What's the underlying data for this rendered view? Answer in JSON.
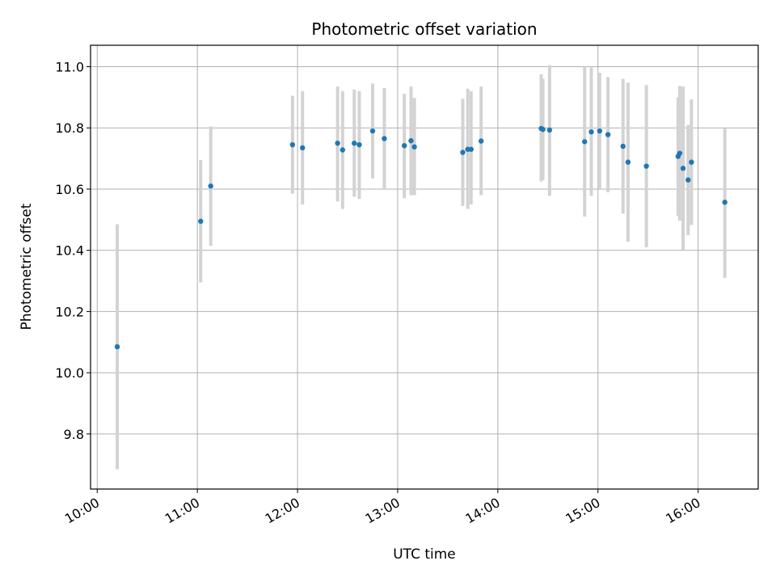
{
  "chart_data": {
    "type": "scatter",
    "title": "Photometric offset variation",
    "xlabel": "UTC time",
    "ylabel": "Photometric offset",
    "x_tick_labels": [
      "10:00",
      "11:00",
      "12:00",
      "13:00",
      "14:00",
      "15:00",
      "16:00"
    ],
    "y_tick_labels": [
      "9.8",
      "10.0",
      "10.2",
      "10.4",
      "10.6",
      "10.8",
      "11.0"
    ],
    "x_ticks": [
      "10:00",
      "11:00",
      "12:00",
      "13:00",
      "14:00",
      "15:00",
      "16:00"
    ],
    "y_ticks": [
      9.8,
      10.0,
      10.2,
      10.4,
      10.6,
      10.8,
      11.0
    ],
    "xlim": [
      "09:56",
      "16:36"
    ],
    "ylim": [
      9.62,
      11.07
    ],
    "grid": true,
    "marker_color": "#1f77b4",
    "errorbar_color": "#d3d3d3",
    "points": [
      {
        "x": "10:12",
        "y": 10.085,
        "ylo": 9.685,
        "yhi": 10.485
      },
      {
        "x": "11:02",
        "y": 10.495,
        "ylo": 10.295,
        "yhi": 10.695
      },
      {
        "x": "11:08",
        "y": 10.61,
        "ylo": 10.415,
        "yhi": 10.805
      },
      {
        "x": "11:57",
        "y": 10.745,
        "ylo": 10.585,
        "yhi": 10.905
      },
      {
        "x": "12:03",
        "y": 10.735,
        "ylo": 10.55,
        "yhi": 10.92
      },
      {
        "x": "12:24",
        "y": 10.75,
        "ylo": 10.56,
        "yhi": 10.935
      },
      {
        "x": "12:27",
        "y": 10.728,
        "ylo": 10.535,
        "yhi": 10.92
      },
      {
        "x": "12:34",
        "y": 10.75,
        "ylo": 10.575,
        "yhi": 10.925
      },
      {
        "x": "12:37",
        "y": 10.745,
        "ylo": 10.568,
        "yhi": 10.92
      },
      {
        "x": "12:45",
        "y": 10.79,
        "ylo": 10.635,
        "yhi": 10.945
      },
      {
        "x": "12:52",
        "y": 10.765,
        "ylo": 10.6,
        "yhi": 10.93
      },
      {
        "x": "13:04",
        "y": 10.742,
        "ylo": 10.57,
        "yhi": 10.912
      },
      {
        "x": "13:08",
        "y": 10.758,
        "ylo": 10.58,
        "yhi": 10.935
      },
      {
        "x": "13:10",
        "y": 10.738,
        "ylo": 10.58,
        "yhi": 10.898
      },
      {
        "x": "13:39",
        "y": 10.72,
        "ylo": 10.545,
        "yhi": 10.895
      },
      {
        "x": "13:42",
        "y": 10.73,
        "ylo": 10.535,
        "yhi": 10.928
      },
      {
        "x": "13:44",
        "y": 10.73,
        "ylo": 10.55,
        "yhi": 10.92
      },
      {
        "x": "13:50",
        "y": 10.757,
        "ylo": 10.58,
        "yhi": 10.935
      },
      {
        "x": "14:26",
        "y": 10.798,
        "ylo": 10.625,
        "yhi": 10.975
      },
      {
        "x": "14:27",
        "y": 10.795,
        "ylo": 10.63,
        "yhi": 10.96
      },
      {
        "x": "14:31",
        "y": 10.793,
        "ylo": 10.578,
        "yhi": 11.005
      },
      {
        "x": "14:52",
        "y": 10.755,
        "ylo": 10.51,
        "yhi": 11.0
      },
      {
        "x": "14:56",
        "y": 10.787,
        "ylo": 10.578,
        "yhi": 10.997
      },
      {
        "x": "15:01",
        "y": 10.79,
        "ylo": 10.6,
        "yhi": 10.98
      },
      {
        "x": "15:06",
        "y": 10.778,
        "ylo": 10.59,
        "yhi": 10.966
      },
      {
        "x": "15:15",
        "y": 10.74,
        "ylo": 10.52,
        "yhi": 10.96
      },
      {
        "x": "15:18",
        "y": 10.688,
        "ylo": 10.428,
        "yhi": 10.948
      },
      {
        "x": "15:29",
        "y": 10.675,
        "ylo": 10.41,
        "yhi": 10.94
      },
      {
        "x": "15:48",
        "y": 10.707,
        "ylo": 10.513,
        "yhi": 10.9
      },
      {
        "x": "15:49",
        "y": 10.717,
        "ylo": 10.497,
        "yhi": 10.937
      },
      {
        "x": "15:51",
        "y": 10.668,
        "ylo": 10.4,
        "yhi": 10.935
      },
      {
        "x": "15:54",
        "y": 10.63,
        "ylo": 10.45,
        "yhi": 10.81
      },
      {
        "x": "15:56",
        "y": 10.688,
        "ylo": 10.483,
        "yhi": 10.893
      },
      {
        "x": "16:16",
        "y": 10.557,
        "ylo": 10.31,
        "yhi": 10.8
      }
    ]
  }
}
